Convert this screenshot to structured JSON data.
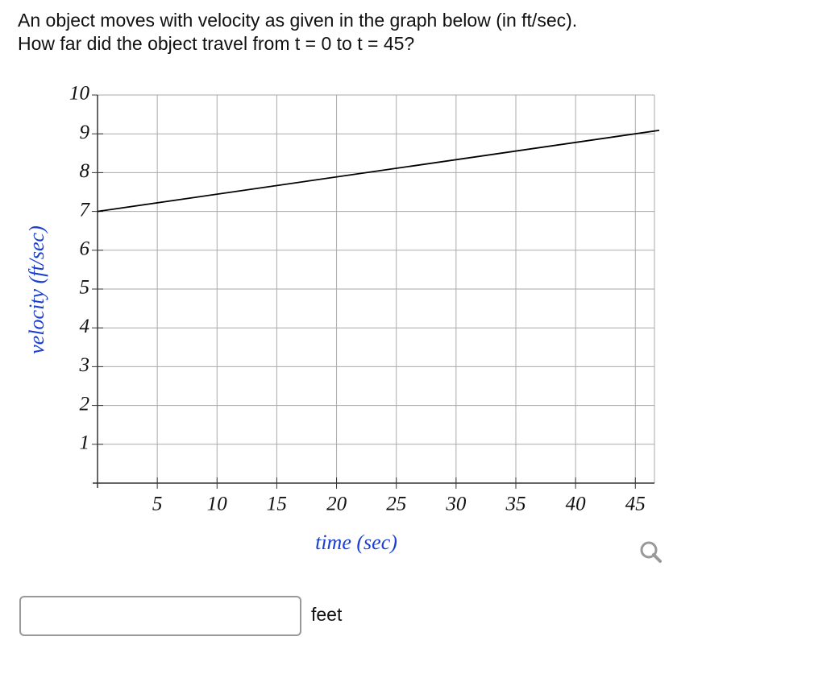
{
  "question": {
    "line1": "An object moves with velocity as given in the graph below (in ft/sec).",
    "line2": "How far did the object travel from t = 0 to t = 45?"
  },
  "chart_data": {
    "type": "line",
    "xlabel": "time (sec)",
    "ylabel": "velocity (ft/sec)",
    "x": [
      0,
      47
    ],
    "series": [
      {
        "color": "#000000",
        "values": [
          7,
          9.09
        ]
      }
    ],
    "xlim": [
      0,
      46.6
    ],
    "xticks": [
      5,
      10,
      15,
      20,
      25,
      30,
      35,
      40,
      45
    ],
    "ylim": [
      0,
      10
    ],
    "yticks": [
      1,
      2,
      3,
      4,
      5,
      6,
      7,
      8,
      9,
      10
    ],
    "grid": true
  },
  "answer": {
    "unit": "feet"
  }
}
